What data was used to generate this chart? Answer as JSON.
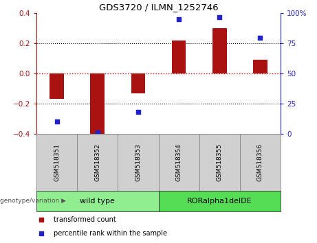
{
  "title": "GDS3720 / ILMN_1252746",
  "samples": [
    "GSM518351",
    "GSM518352",
    "GSM518353",
    "GSM518354",
    "GSM518355",
    "GSM518356"
  ],
  "bar_values": [
    -0.17,
    -0.415,
    -0.13,
    0.22,
    0.3,
    0.09
  ],
  "dot_values": [
    10,
    1,
    18,
    95,
    97,
    80
  ],
  "bar_color": "#AA1111",
  "dot_color": "#2222CC",
  "ylim_left": [
    -0.4,
    0.4
  ],
  "ylim_right": [
    0,
    100
  ],
  "yticks_left": [
    -0.4,
    -0.2,
    0.0,
    0.2,
    0.4
  ],
  "yticks_right": [
    0,
    25,
    50,
    75,
    100
  ],
  "ytick_labels_right": [
    "0",
    "25",
    "50",
    "75",
    "100%"
  ],
  "groups": [
    {
      "label": "wild type",
      "samples": [
        0,
        1,
        2
      ],
      "color": "#90EE90"
    },
    {
      "label": "RORalpha1delDE",
      "samples": [
        3,
        4,
        5
      ],
      "color": "#55DD55"
    }
  ],
  "group_label": "genotype/variation",
  "legend": [
    {
      "label": "transformed count",
      "color": "#AA1111"
    },
    {
      "label": "percentile rank within the sample",
      "color": "#2222CC"
    }
  ],
  "hline_zero_color": "#DD0000",
  "background_plot": "#FFFFFF",
  "bar_width": 0.35
}
